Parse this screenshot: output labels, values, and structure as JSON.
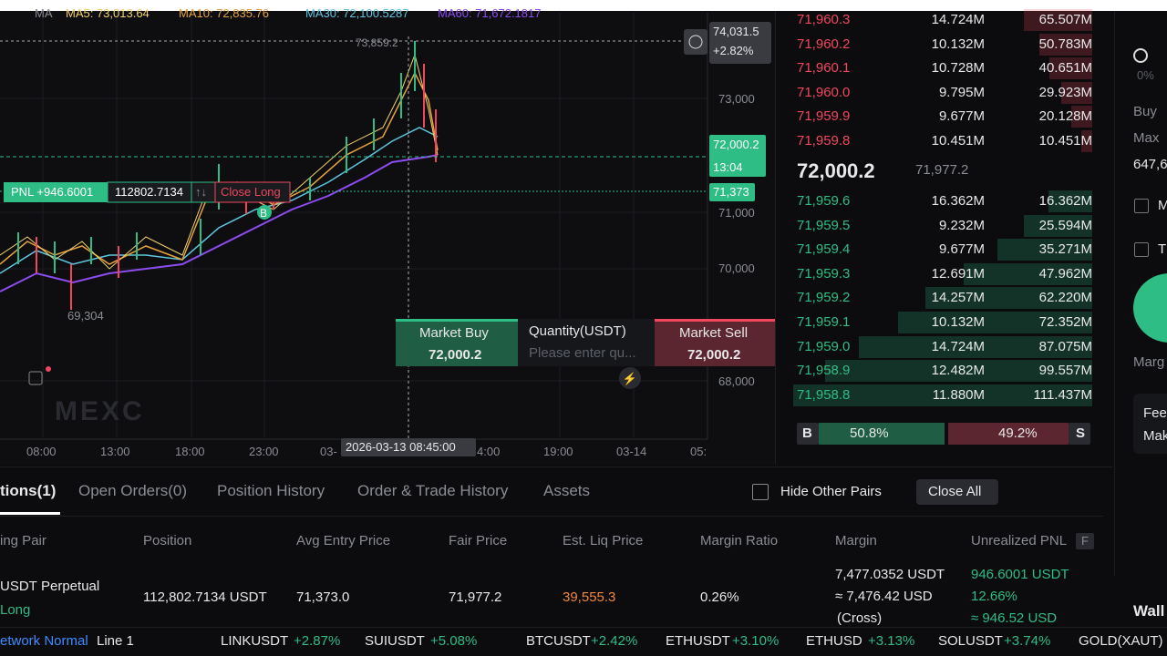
{
  "top_bar": {
    "ma": "MA",
    "ma5": "MA5: 73,013.64",
    "ma10": "MA10: 72,835.76",
    "ma30": "MA30: 72,100.5287",
    "ma60": "MA60: 71,672.1817"
  },
  "chart": {
    "high_label": "73,859.2",
    "low_label": "69,304",
    "crosshair_price": "74,031.5",
    "crosshair_change": "+2.82%",
    "price_axis": [
      "73,000",
      "71,000",
      "70,000",
      "68,000"
    ],
    "last_price": "72,000.2",
    "countdown": "13:04",
    "entry_price": "71,373",
    "time_axis": [
      "08:00",
      "13:00",
      "18:00",
      "23:00",
      "03-",
      "4:00",
      "19:00",
      "03-14",
      "05:"
    ],
    "crosshair_time": "2026-03-13 08:45:00",
    "watermark": "MEXC",
    "pnl": "PNL +946.6001",
    "position_size": "112802.7134",
    "reverse": "↑↓",
    "close_long": "Close Long",
    "buy_marker": "B"
  },
  "quick_trade": {
    "buy": "Market Buy",
    "buy_price": "72,000.2",
    "quantity": "Quantity(USDT)",
    "placeholder": "Please enter qu...",
    "sell": "Market Sell",
    "sell_price": "72,000.2"
  },
  "order_book": {
    "asks": [
      [
        "71,960.3",
        "14.724M",
        "65.507M"
      ],
      [
        "71,960.2",
        "10.132M",
        "50.783M"
      ],
      [
        "71,960.1",
        "10.728M",
        "40.651M"
      ],
      [
        "71,960.0",
        "9.795M",
        "29.923M"
      ],
      [
        "71,959.9",
        "9.677M",
        "20.128M"
      ],
      [
        "71,959.8",
        "10.451M",
        "10.451M"
      ]
    ],
    "mid_price": "72,000.2",
    "fair_price": "71,977.2",
    "bids": [
      [
        "71,959.6",
        "16.362M",
        "16.362M"
      ],
      [
        "71,959.5",
        "9.232M",
        "25.594M"
      ],
      [
        "71,959.4",
        "9.677M",
        "35.271M"
      ],
      [
        "71,959.3",
        "12.691M",
        "47.962M"
      ],
      [
        "71,959.2",
        "14.257M",
        "62.220M"
      ],
      [
        "71,959.1",
        "10.132M",
        "72.352M"
      ],
      [
        "71,959.0",
        "14.724M",
        "87.075M"
      ],
      [
        "71,958.9",
        "12.482M",
        "99.557M"
      ],
      [
        "71,958.8",
        "11.880M",
        "111.437M"
      ]
    ],
    "buy_label": "B",
    "buy_ratio": "50.8%",
    "sell_ratio": "49.2%",
    "sell_label": "S"
  },
  "side_panel": {
    "percent": "0%",
    "buy": "Buy",
    "max": "Max",
    "amount": "647,6",
    "option_m": "M",
    "option_t": "T",
    "margin": "Marg",
    "fee": "Fee",
    "maker": "Mak",
    "wallet": "Wall"
  },
  "positions": {
    "tabs": [
      "tions(1)",
      "Open Orders(0)",
      "Position History",
      "Order & Trade History",
      "Assets"
    ],
    "hide_other_pairs": "Hide Other Pairs",
    "close_all": "Close All",
    "headers": [
      "ing Pair",
      "Position",
      "Avg Entry Price",
      "Fair Price",
      "Est. Liq Price",
      "Margin Ratio",
      "Margin",
      "Unrealized PNL"
    ],
    "fee_badge": "F",
    "row": {
      "symbol": "USDT",
      "contract": "Perpetual",
      "side": "Long",
      "position": "112,802.7134 USDT",
      "avg_entry": "71,373.0",
      "fair_price": "71,977.2",
      "liq_price": "39,555.3",
      "margin_ratio": "0.26%",
      "margin": "7,477.0352 USDT",
      "margin_usd": "≈ 7,476.42 USD",
      "margin_mode": "(Cross)",
      "pnl": "946.6001 USDT",
      "pnl_pct": "12.66%",
      "pnl_usd": "≈ 946.52 USD"
    }
  },
  "ticker": {
    "network": "etwork Normal",
    "line": "Line 1",
    "items": [
      [
        "LINKUSDT",
        "+2.87%"
      ],
      [
        "SUIUSDT",
        "+5.08%"
      ],
      [
        "BTCUSDT",
        "+2.42%"
      ],
      [
        "ETHUSDT",
        "+3.10%"
      ],
      [
        "ETHUSD",
        "+3.13%"
      ],
      [
        "SOLUSDT",
        "+3.74%"
      ]
    ],
    "last": "GOLD(XAUT)"
  }
}
